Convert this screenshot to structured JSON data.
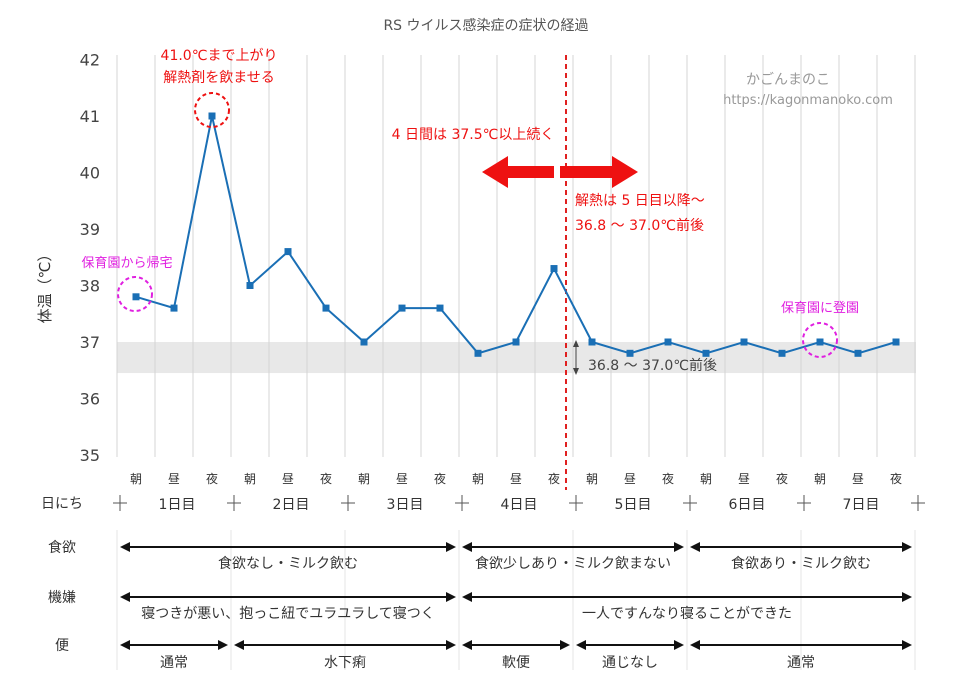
{
  "chart_data": {
    "type": "line",
    "title": "RS ウイルス感染症の症状の経過",
    "ylabel": "体温（℃）",
    "ylim": [
      35,
      42
    ],
    "yticks": [
      "35",
      "36",
      "37",
      "38",
      "39",
      "40",
      "41",
      "42"
    ],
    "x": [
      "朝",
      "昼",
      "夜",
      "朝",
      "昼",
      "夜",
      "朝",
      "昼",
      "夜",
      "朝",
      "昼",
      "夜",
      "朝",
      "昼",
      "夜",
      "朝",
      "昼",
      "夜",
      "朝",
      "昼",
      "夜"
    ],
    "series": [
      {
        "name": "体温",
        "color": "#1a6fb5",
        "values": [
          37.8,
          37.6,
          41.0,
          38.0,
          38.6,
          37.6,
          37.0,
          37.6,
          37.6,
          36.8,
          37.0,
          38.3,
          37.0,
          36.8,
          37.0,
          36.8,
          37.0,
          36.8,
          37.0,
          36.8,
          37.0
        ]
      }
    ],
    "normal_band": [
      36.45,
      37.0
    ],
    "grid": "vertical",
    "divider_after_index": 11
  },
  "annotations": {
    "peak_line1": "41.0℃まで上がり",
    "peak_line2": "解熱剤を飲ませる",
    "home": "保育園から帰宅",
    "fever_days": "4 日間は 37.5℃以上続く",
    "recovery_line1": "解熱は 5 日目以降～",
    "recovery_line2": "36.8 ～ 37.0℃前後",
    "band_label": "36.8 ～ 37.0℃前後",
    "school": "保育園に登園",
    "watermark_name": "かごんまのこ",
    "watermark_url": "https://kagonmanoko.com"
  },
  "rows": {
    "days_label": "日にち",
    "days": [
      "1日目",
      "2日目",
      "3日目",
      "4日目",
      "5日目",
      "6日目",
      "7日目"
    ],
    "appetite_label": "食欲",
    "appetite": [
      {
        "from": 0,
        "to": 3,
        "text": "食欲なし・ミルク飲む"
      },
      {
        "from": 3,
        "to": 5,
        "text": "食欲少しあり・ミルク飲まない"
      },
      {
        "from": 5,
        "to": 7,
        "text": "食欲あり・ミルク飲む"
      }
    ],
    "mood_label": "機嫌",
    "mood": [
      {
        "from": 0,
        "to": 3,
        "text": "寝つきが悪い、抱っこ紐でユラユラして寝つく"
      },
      {
        "from": 3,
        "to": 7,
        "text": "一人ですんなり寝ることができた"
      }
    ],
    "stool_label": "便",
    "stool": [
      {
        "from": 0,
        "to": 1,
        "text": "通常"
      },
      {
        "from": 1,
        "to": 3,
        "text": "水下痢"
      },
      {
        "from": 3,
        "to": 4,
        "text": "軟便"
      },
      {
        "from": 4,
        "to": 5,
        "text": "通じなし"
      },
      {
        "from": 5,
        "to": 7,
        "text": "通常"
      }
    ]
  },
  "colors": {
    "red": "#ee1111",
    "magenta": "#e020e0",
    "line": "#1a6fb5"
  }
}
